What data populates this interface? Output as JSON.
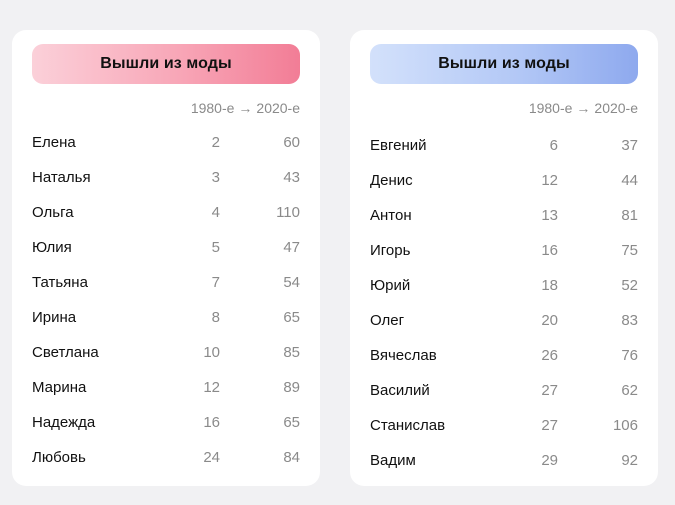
{
  "left": {
    "title": "Вышли из моды",
    "col_from": "1980-е",
    "arrow": "→",
    "col_to": "2020-е",
    "accent_gradient": [
      "#fbd0d9",
      "#f27d96"
    ],
    "rows": [
      {
        "name": "Елена",
        "v1980": "2",
        "v2020": "60"
      },
      {
        "name": "Наталья",
        "v1980": "3",
        "v2020": "43"
      },
      {
        "name": "Ольга",
        "v1980": "4",
        "v2020": "110"
      },
      {
        "name": "Юлия",
        "v1980": "5",
        "v2020": "47"
      },
      {
        "name": "Татьяна",
        "v1980": "7",
        "v2020": "54"
      },
      {
        "name": "Ирина",
        "v1980": "8",
        "v2020": "65"
      },
      {
        "name": "Светлана",
        "v1980": "10",
        "v2020": "85"
      },
      {
        "name": "Марина",
        "v1980": "12",
        "v2020": "89"
      },
      {
        "name": "Надежда",
        "v1980": "16",
        "v2020": "65"
      },
      {
        "name": "Любовь",
        "v1980": "24",
        "v2020": "84"
      }
    ]
  },
  "right": {
    "title": "Вышли из моды",
    "col_from": "1980-е",
    "arrow": "→",
    "col_to": "2020-е",
    "accent_gradient": [
      "#d3e1fb",
      "#8ea9ee"
    ],
    "rows": [
      {
        "name": "Евгений",
        "v1980": "6",
        "v2020": "37"
      },
      {
        "name": "Денис",
        "v1980": "12",
        "v2020": "44"
      },
      {
        "name": "Антон",
        "v1980": "13",
        "v2020": "81"
      },
      {
        "name": "Игорь",
        "v1980": "16",
        "v2020": "75"
      },
      {
        "name": "Юрий",
        "v1980": "18",
        "v2020": "52"
      },
      {
        "name": "Олег",
        "v1980": "20",
        "v2020": "83"
      },
      {
        "name": "Вячеслав",
        "v1980": "26",
        "v2020": "76"
      },
      {
        "name": "Василий",
        "v1980": "27",
        "v2020": "62"
      },
      {
        "name": "Станислав",
        "v1980": "27",
        "v2020": "106"
      },
      {
        "name": "Вадим",
        "v1980": "29",
        "v2020": "92"
      }
    ]
  }
}
